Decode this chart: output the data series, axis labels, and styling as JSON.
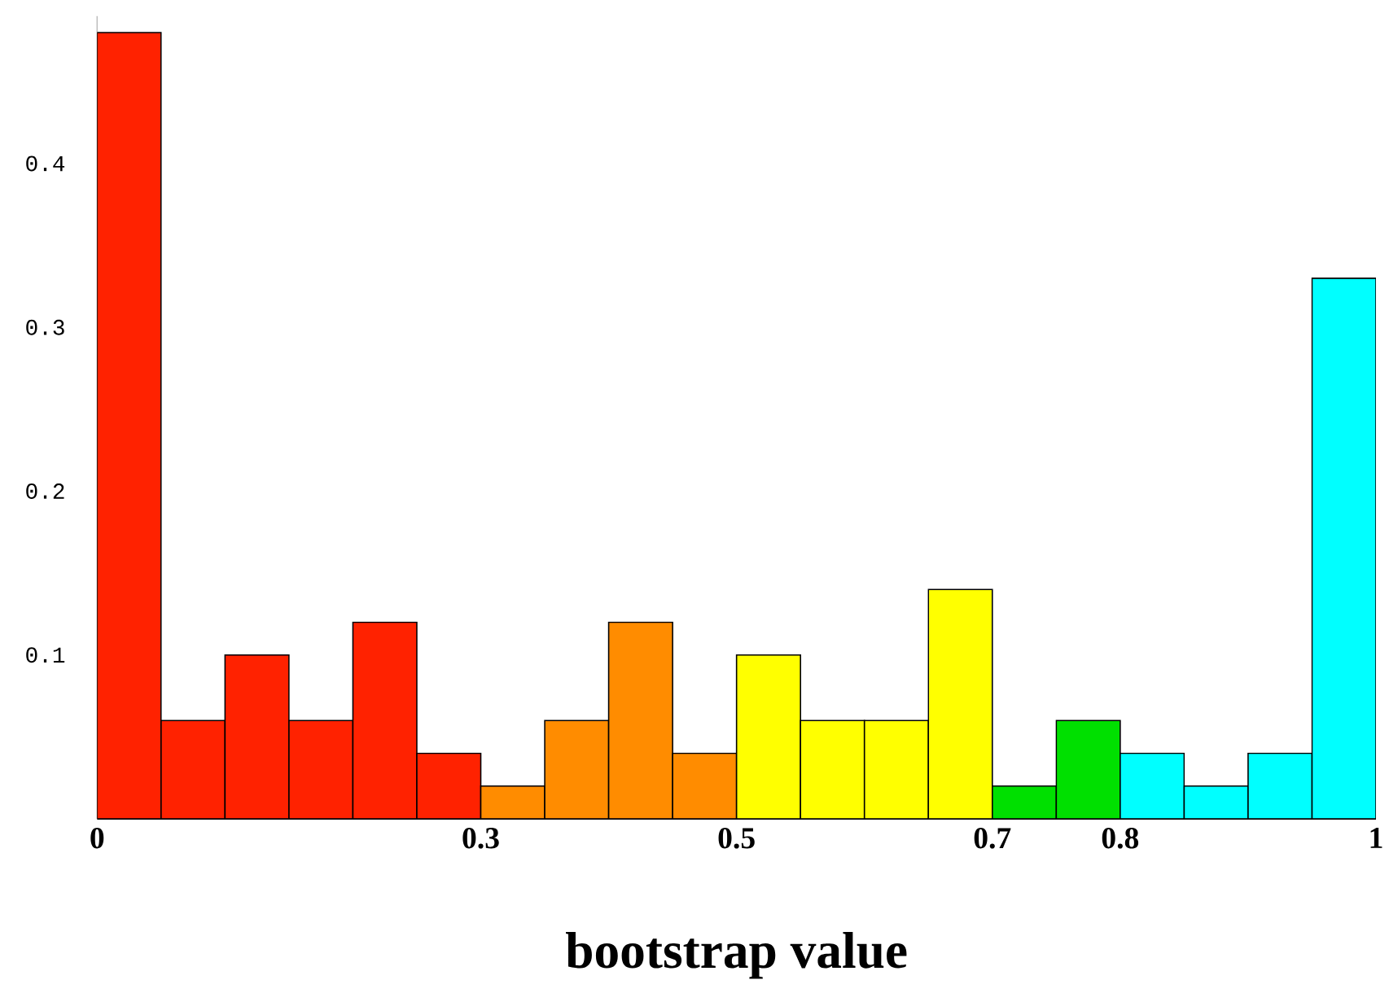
{
  "chart_data": {
    "type": "histogram",
    "xlabel": "bootstrap value",
    "bins": [
      0,
      0.05,
      0.1,
      0.15,
      0.2,
      0.25,
      0.3,
      0.35,
      0.4,
      0.45,
      0.5,
      0.55,
      0.6,
      0.65,
      0.7,
      0.75,
      0.8,
      0.85,
      0.9,
      0.95,
      1
    ],
    "values": [
      0.48,
      0.06,
      0.1,
      0.06,
      0.12,
      0.04,
      0.02,
      0.06,
      0.12,
      0.04,
      0.1,
      0.06,
      0.06,
      0.14,
      0.02,
      0.06,
      0.04,
      0.02,
      0.04,
      0.33
    ],
    "colors": [
      "#ff2200",
      "#ff2200",
      "#ff2200",
      "#ff2200",
      "#ff2200",
      "#ff2200",
      "#ff8c00",
      "#ff8c00",
      "#ff8c00",
      "#ff8c00",
      "#ffff00",
      "#ffff00",
      "#ffff00",
      "#ffff00",
      "#00e000",
      "#00e000",
      "#00ffff",
      "#00ffff",
      "#00ffff",
      "#00ffff"
    ],
    "xlim": [
      0,
      1
    ],
    "ylim": [
      0,
      0.49
    ],
    "xticks": [
      0,
      0.3,
      0.5,
      0.7,
      0.8,
      1
    ],
    "yticks": [
      0.1,
      0.2,
      0.3,
      0.4
    ]
  }
}
